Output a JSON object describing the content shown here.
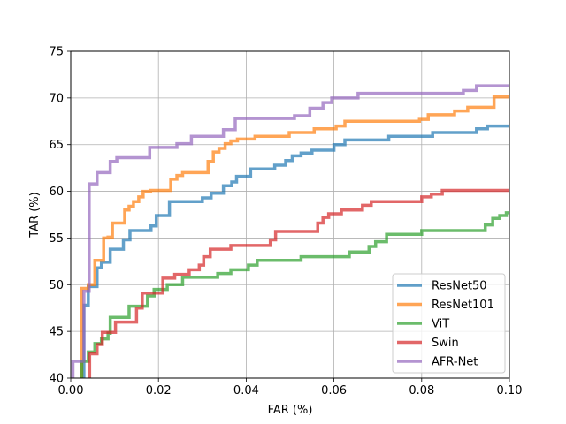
{
  "chart_data": {
    "type": "line",
    "title": "",
    "xlabel": "FAR (%)",
    "ylabel": "TAR (%)",
    "xlim": [
      0,
      0.1
    ],
    "ylim": [
      40,
      75
    ],
    "xticks": [
      0.0,
      0.02,
      0.04,
      0.06,
      0.08,
      0.1
    ],
    "xtick_labels": [
      "0.00",
      "0.02",
      "0.04",
      "0.06",
      "0.08",
      "0.10"
    ],
    "yticks": [
      40,
      45,
      50,
      55,
      60,
      65,
      70,
      75
    ],
    "ytick_labels": [
      "40",
      "45",
      "50",
      "55",
      "60",
      "65",
      "70",
      "75"
    ],
    "grid": true,
    "legend_position": "lower-right",
    "series": [
      {
        "name": "ResNet50",
        "color": "#1f77b4",
        "points": [
          [
            0.003,
            40
          ],
          [
            0.003,
            47.8
          ],
          [
            0.004,
            47.8
          ],
          [
            0.004,
            49.8
          ],
          [
            0.006,
            49.8
          ],
          [
            0.006,
            51.8
          ],
          [
            0.007,
            51.8
          ],
          [
            0.007,
            52.4
          ],
          [
            0.009,
            52.4
          ],
          [
            0.009,
            53.8
          ],
          [
            0.012,
            53.8
          ],
          [
            0.012,
            54.8
          ],
          [
            0.0135,
            54.8
          ],
          [
            0.0135,
            55.8
          ],
          [
            0.0183,
            55.8
          ],
          [
            0.0183,
            56.3
          ],
          [
            0.0195,
            56.3
          ],
          [
            0.0195,
            57.4
          ],
          [
            0.0225,
            57.4
          ],
          [
            0.0225,
            58.9
          ],
          [
            0.03,
            58.9
          ],
          [
            0.03,
            59.3
          ],
          [
            0.032,
            59.3
          ],
          [
            0.032,
            59.8
          ],
          [
            0.0348,
            59.8
          ],
          [
            0.0348,
            60.6
          ],
          [
            0.0367,
            60.6
          ],
          [
            0.0367,
            61.0
          ],
          [
            0.0378,
            61.0
          ],
          [
            0.0378,
            61.6
          ],
          [
            0.041,
            61.6
          ],
          [
            0.041,
            62.4
          ],
          [
            0.0465,
            62.4
          ],
          [
            0.0465,
            62.8
          ],
          [
            0.049,
            62.8
          ],
          [
            0.049,
            63.3
          ],
          [
            0.0505,
            63.3
          ],
          [
            0.0505,
            63.8
          ],
          [
            0.0525,
            63.8
          ],
          [
            0.0525,
            64.1
          ],
          [
            0.055,
            64.1
          ],
          [
            0.055,
            64.4
          ],
          [
            0.06,
            64.4
          ],
          [
            0.06,
            65.0
          ],
          [
            0.0625,
            65.0
          ],
          [
            0.0625,
            65.5
          ],
          [
            0.0725,
            65.5
          ],
          [
            0.0725,
            65.9
          ],
          [
            0.0825,
            65.9
          ],
          [
            0.0825,
            66.3
          ],
          [
            0.0925,
            66.3
          ],
          [
            0.0925,
            66.7
          ],
          [
            0.095,
            66.7
          ],
          [
            0.095,
            67.0
          ],
          [
            0.1,
            67.0
          ]
        ]
      },
      {
        "name": "ResNet101",
        "color": "#ff7f0e",
        "points": [
          [
            0.0025,
            40
          ],
          [
            0.0025,
            49.6
          ],
          [
            0.004,
            49.6
          ],
          [
            0.004,
            50.0
          ],
          [
            0.0055,
            50.0
          ],
          [
            0.0055,
            52.6
          ],
          [
            0.0075,
            52.6
          ],
          [
            0.0075,
            55.0
          ],
          [
            0.0085,
            55.0
          ],
          [
            0.0085,
            55.1
          ],
          [
            0.0095,
            55.1
          ],
          [
            0.0095,
            56.6
          ],
          [
            0.0123,
            56.6
          ],
          [
            0.0123,
            58.0
          ],
          [
            0.0133,
            58.0
          ],
          [
            0.0133,
            58.4
          ],
          [
            0.0143,
            58.4
          ],
          [
            0.0143,
            58.9
          ],
          [
            0.0155,
            58.9
          ],
          [
            0.0155,
            59.4
          ],
          [
            0.0165,
            59.4
          ],
          [
            0.0165,
            60.0
          ],
          [
            0.0182,
            60.0
          ],
          [
            0.0182,
            60.1
          ],
          [
            0.0228,
            60.1
          ],
          [
            0.0228,
            61.3
          ],
          [
            0.0242,
            61.3
          ],
          [
            0.0242,
            61.7
          ],
          [
            0.0255,
            61.7
          ],
          [
            0.0255,
            62.0
          ],
          [
            0.0313,
            62.0
          ],
          [
            0.0313,
            63.2
          ],
          [
            0.0325,
            63.2
          ],
          [
            0.0325,
            64.2
          ],
          [
            0.0338,
            64.2
          ],
          [
            0.0338,
            64.6
          ],
          [
            0.0352,
            64.6
          ],
          [
            0.0352,
            65.1
          ],
          [
            0.0365,
            65.1
          ],
          [
            0.0365,
            65.4
          ],
          [
            0.038,
            65.4
          ],
          [
            0.038,
            65.6
          ],
          [
            0.042,
            65.6
          ],
          [
            0.042,
            65.9
          ],
          [
            0.0498,
            65.9
          ],
          [
            0.0498,
            66.3
          ],
          [
            0.0555,
            66.3
          ],
          [
            0.0555,
            66.7
          ],
          [
            0.0605,
            66.7
          ],
          [
            0.0605,
            67.0
          ],
          [
            0.0625,
            67.0
          ],
          [
            0.0625,
            67.5
          ],
          [
            0.0795,
            67.5
          ],
          [
            0.0795,
            67.7
          ],
          [
            0.0815,
            67.7
          ],
          [
            0.0815,
            68.2
          ],
          [
            0.0875,
            68.2
          ],
          [
            0.0875,
            68.6
          ],
          [
            0.0905,
            68.6
          ],
          [
            0.0905,
            69.0
          ],
          [
            0.0965,
            69.0
          ],
          [
            0.0965,
            70.1
          ],
          [
            0.1,
            70.1
          ]
        ]
      },
      {
        "name": "ViT",
        "color": "#2ca02c",
        "points": [
          [
            0.0025,
            40
          ],
          [
            0.0025,
            41.8
          ],
          [
            0.004,
            41.8
          ],
          [
            0.004,
            42.8
          ],
          [
            0.0055,
            42.8
          ],
          [
            0.0055,
            43.7
          ],
          [
            0.007,
            43.7
          ],
          [
            0.007,
            44.2
          ],
          [
            0.0085,
            44.2
          ],
          [
            0.0085,
            44.8
          ],
          [
            0.009,
            44.8
          ],
          [
            0.009,
            46.5
          ],
          [
            0.0133,
            46.5
          ],
          [
            0.0133,
            47.7
          ],
          [
            0.0175,
            47.7
          ],
          [
            0.0175,
            48.8
          ],
          [
            0.019,
            48.8
          ],
          [
            0.019,
            49.5
          ],
          [
            0.022,
            49.5
          ],
          [
            0.022,
            50.0
          ],
          [
            0.0255,
            50.0
          ],
          [
            0.0255,
            50.8
          ],
          [
            0.0335,
            50.8
          ],
          [
            0.0335,
            51.2
          ],
          [
            0.0365,
            51.2
          ],
          [
            0.0365,
            51.6
          ],
          [
            0.0405,
            51.6
          ],
          [
            0.0405,
            52.1
          ],
          [
            0.0425,
            52.1
          ],
          [
            0.0425,
            52.6
          ],
          [
            0.0525,
            52.6
          ],
          [
            0.0525,
            53.0
          ],
          [
            0.0635,
            53.0
          ],
          [
            0.0635,
            53.5
          ],
          [
            0.068,
            53.5
          ],
          [
            0.068,
            54.1
          ],
          [
            0.0695,
            54.1
          ],
          [
            0.0695,
            54.6
          ],
          [
            0.072,
            54.6
          ],
          [
            0.072,
            55.4
          ],
          [
            0.08,
            55.4
          ],
          [
            0.08,
            55.8
          ],
          [
            0.0945,
            55.8
          ],
          [
            0.0945,
            56.4
          ],
          [
            0.0962,
            56.4
          ],
          [
            0.0962,
            57.1
          ],
          [
            0.0978,
            57.1
          ],
          [
            0.0978,
            57.4
          ],
          [
            0.0993,
            57.4
          ],
          [
            0.0993,
            57.7
          ],
          [
            0.1,
            57.7
          ]
        ]
      },
      {
        "name": "Swin",
        "color": "#d62728",
        "points": [
          [
            0.0043,
            40
          ],
          [
            0.0043,
            42.6
          ],
          [
            0.006,
            42.6
          ],
          [
            0.006,
            43.6
          ],
          [
            0.0072,
            43.6
          ],
          [
            0.0072,
            44.9
          ],
          [
            0.0102,
            44.9
          ],
          [
            0.0102,
            46.0
          ],
          [
            0.015,
            46.0
          ],
          [
            0.015,
            47.5
          ],
          [
            0.0163,
            47.5
          ],
          [
            0.0163,
            49.1
          ],
          [
            0.021,
            49.1
          ],
          [
            0.021,
            50.7
          ],
          [
            0.0237,
            50.7
          ],
          [
            0.0237,
            51.1
          ],
          [
            0.027,
            51.1
          ],
          [
            0.027,
            51.6
          ],
          [
            0.0293,
            51.6
          ],
          [
            0.0293,
            52.1
          ],
          [
            0.0303,
            52.1
          ],
          [
            0.0303,
            53.0
          ],
          [
            0.0318,
            53.0
          ],
          [
            0.0318,
            53.8
          ],
          [
            0.0365,
            53.8
          ],
          [
            0.0365,
            54.2
          ],
          [
            0.0455,
            54.2
          ],
          [
            0.0455,
            54.8
          ],
          [
            0.0467,
            54.8
          ],
          [
            0.0467,
            55.7
          ],
          [
            0.0563,
            55.7
          ],
          [
            0.0563,
            56.6
          ],
          [
            0.0575,
            56.6
          ],
          [
            0.0575,
            57.2
          ],
          [
            0.0588,
            57.2
          ],
          [
            0.0588,
            57.6
          ],
          [
            0.0617,
            57.6
          ],
          [
            0.0617,
            58.0
          ],
          [
            0.0665,
            58.0
          ],
          [
            0.0665,
            58.5
          ],
          [
            0.0685,
            58.5
          ],
          [
            0.0685,
            58.9
          ],
          [
            0.08,
            58.9
          ],
          [
            0.08,
            59.4
          ],
          [
            0.0822,
            59.4
          ],
          [
            0.0822,
            59.7
          ],
          [
            0.0847,
            59.7
          ],
          [
            0.0847,
            60.1
          ],
          [
            0.1,
            60.1
          ]
        ]
      },
      {
        "name": "AFR-Net",
        "color": "#9467bd",
        "points": [
          [
            0.0005,
            40
          ],
          [
            0.0005,
            41.8
          ],
          [
            0.003,
            41.8
          ],
          [
            0.003,
            49.3
          ],
          [
            0.0042,
            49.3
          ],
          [
            0.0042,
            60.8
          ],
          [
            0.006,
            60.8
          ],
          [
            0.006,
            62.0
          ],
          [
            0.009,
            62.0
          ],
          [
            0.009,
            63.2
          ],
          [
            0.0105,
            63.2
          ],
          [
            0.0105,
            63.6
          ],
          [
            0.018,
            63.6
          ],
          [
            0.018,
            64.7
          ],
          [
            0.0242,
            64.7
          ],
          [
            0.0242,
            65.1
          ],
          [
            0.0275,
            65.1
          ],
          [
            0.0275,
            65.9
          ],
          [
            0.0348,
            65.9
          ],
          [
            0.0348,
            66.6
          ],
          [
            0.0375,
            66.6
          ],
          [
            0.0375,
            67.8
          ],
          [
            0.051,
            67.8
          ],
          [
            0.051,
            68.1
          ],
          [
            0.0545,
            68.1
          ],
          [
            0.0545,
            68.9
          ],
          [
            0.0575,
            68.9
          ],
          [
            0.0575,
            69.5
          ],
          [
            0.0595,
            69.5
          ],
          [
            0.0595,
            70.0
          ],
          [
            0.0655,
            70.0
          ],
          [
            0.0655,
            70.5
          ],
          [
            0.0895,
            70.5
          ],
          [
            0.0895,
            70.8
          ],
          [
            0.0925,
            70.8
          ],
          [
            0.0925,
            71.3
          ],
          [
            0.1,
            71.3
          ]
        ]
      }
    ]
  }
}
